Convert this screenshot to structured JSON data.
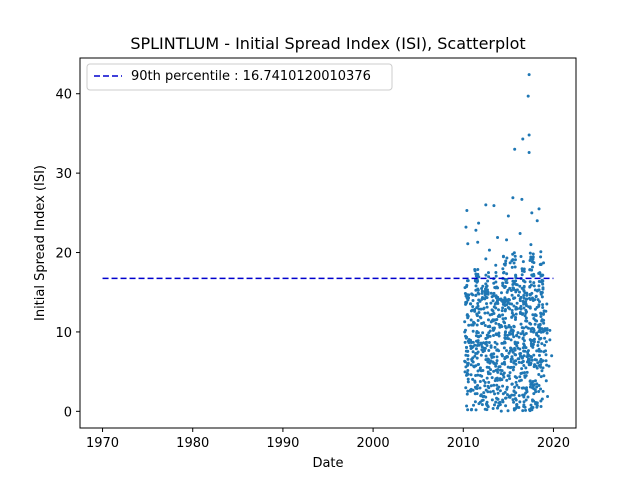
{
  "chart_data": {
    "type": "scatter",
    "title": "SPLINTLUM - Initial Spread Index (ISI), Scatterplot",
    "xlabel": "Date",
    "ylabel": "Initial Spread Index (ISI)",
    "xlim": [
      1967.5,
      2022.5
    ],
    "ylim": [
      -2.1,
      44.5
    ],
    "xticks": [
      1970,
      1980,
      1990,
      2000,
      2010,
      2020
    ],
    "yticks": [
      0,
      10,
      20,
      30,
      40
    ],
    "grid": false,
    "legend_position": "top-left",
    "point_color": "#1f77b4",
    "percentile": {
      "label": "90th percentile : 16.7410120010376",
      "value": 16.7410120010376,
      "x_range": [
        1970,
        2020
      ],
      "color": "#0000cd",
      "style": "dashed"
    },
    "outliers": [
      [
        2017.3,
        42.4
      ],
      [
        2017.2,
        39.7
      ],
      [
        2017.3,
        34.8
      ],
      [
        2016.6,
        34.3
      ],
      [
        2015.7,
        33.0
      ],
      [
        2017.3,
        32.6
      ],
      [
        2015.5,
        26.9
      ],
      [
        2016.5,
        26.7
      ],
      [
        2012.5,
        26.0
      ],
      [
        2013.4,
        25.9
      ],
      [
        2010.4,
        25.3
      ],
      [
        2018.4,
        25.5
      ],
      [
        2017.6,
        25.0
      ],
      [
        2015.0,
        24.6
      ],
      [
        2018.2,
        24.0
      ],
      [
        2011.7,
        23.7
      ],
      [
        2010.3,
        23.2
      ],
      [
        2011.4,
        22.8
      ],
      [
        2016.3,
        22.4
      ],
      [
        2013.8,
        21.9
      ],
      [
        2010.5,
        21.1
      ],
      [
        2011.6,
        21.3
      ],
      [
        2014.8,
        21.6
      ],
      [
        2017.5,
        21.0
      ],
      [
        2012.9,
        20.3
      ],
      [
        2018.6,
        20.1
      ],
      [
        2016.4,
        19.5
      ],
      [
        2015.2,
        18.7
      ],
      [
        2013.6,
        18.4
      ],
      [
        2012.5,
        19.2
      ],
      [
        2018.9,
        18.7
      ],
      [
        2017.4,
        19.0
      ],
      [
        2019.6,
        10.2
      ],
      [
        2019.8,
        7.0
      ],
      [
        2019.5,
        5.7
      ],
      [
        2019.6,
        9.0
      ]
    ],
    "dense_clusters": [
      {
        "x": 2010.4,
        "y_range": [
          0,
          16.5
        ],
        "n": 60
      },
      {
        "x": 2011.0,
        "y_range": [
          0,
          15.0
        ],
        "n": 40
      },
      {
        "x": 2011.5,
        "y_range": [
          0,
          18.0
        ],
        "n": 70
      },
      {
        "x": 2012.1,
        "y_range": [
          0,
          16.0
        ],
        "n": 45
      },
      {
        "x": 2012.6,
        "y_range": [
          0,
          17.5
        ],
        "n": 65
      },
      {
        "x": 2013.1,
        "y_range": [
          0,
          15.0
        ],
        "n": 40
      },
      {
        "x": 2013.6,
        "y_range": [
          0,
          18.0
        ],
        "n": 65
      },
      {
        "x": 2014.1,
        "y_range": [
          0,
          15.5
        ],
        "n": 40
      },
      {
        "x": 2014.6,
        "y_range": [
          0,
          20.0
        ],
        "n": 70
      },
      {
        "x": 2015.1,
        "y_range": [
          0,
          16.0
        ],
        "n": 45
      },
      {
        "x": 2015.6,
        "y_range": [
          0,
          20.5
        ],
        "n": 75
      },
      {
        "x": 2016.1,
        "y_range": [
          0,
          16.0
        ],
        "n": 45
      },
      {
        "x": 2016.6,
        "y_range": [
          0,
          19.5
        ],
        "n": 70
      },
      {
        "x": 2017.1,
        "y_range": [
          0,
          16.0
        ],
        "n": 45
      },
      {
        "x": 2017.6,
        "y_range": [
          0,
          20.0
        ],
        "n": 75
      },
      {
        "x": 2018.1,
        "y_range": [
          0,
          16.0
        ],
        "n": 45
      },
      {
        "x": 2018.6,
        "y_range": [
          0,
          19.5
        ],
        "n": 70
      },
      {
        "x": 2019.1,
        "y_range": [
          0,
          14.0
        ],
        "n": 25
      }
    ]
  }
}
